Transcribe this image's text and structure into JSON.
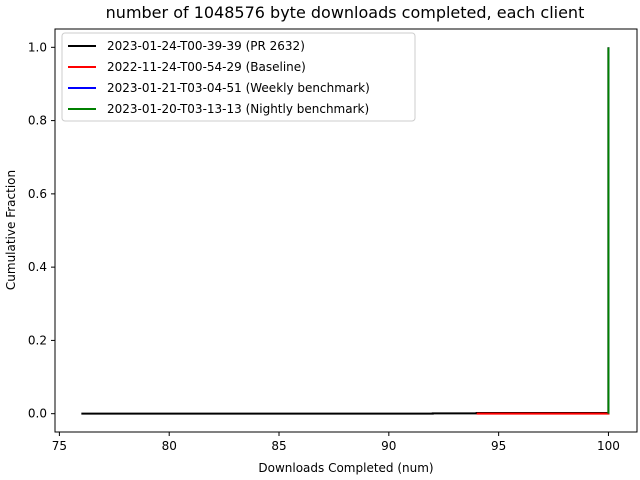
{
  "chart_data": {
    "type": "line",
    "title": "number of 1048576 byte downloads completed, each client",
    "xlabel": "Downloads Completed (num)",
    "ylabel": "Cumulative Fraction",
    "xlim": [
      74.8,
      101.3
    ],
    "ylim": [
      -0.05,
      1.05
    ],
    "xticks": [
      75,
      80,
      85,
      90,
      95,
      100
    ],
    "yticks": [
      0.0,
      0.2,
      0.4,
      0.6,
      0.8,
      1.0
    ],
    "xtick_labels": [
      "75",
      "80",
      "85",
      "90",
      "95",
      "100"
    ],
    "ytick_labels": [
      "0.0",
      "0.2",
      "0.4",
      "0.6",
      "0.8",
      "1.0"
    ],
    "legend_position": "top-left",
    "grid": false,
    "series": [
      {
        "name": "2023-01-24-T00-39-39 (PR 2632)",
        "color": "#000000",
        "x": [
          76,
          92,
          92,
          94,
          94,
          100,
          100
        ],
        "y": [
          0.0,
          0.0,
          0.001,
          0.001,
          0.002,
          0.002,
          1.0
        ]
      },
      {
        "name": "2022-11-24-T00-54-29 (Baseline)",
        "color": "#ff0000",
        "x": [
          94,
          100,
          100
        ],
        "y": [
          0.0,
          0.0,
          1.0
        ]
      },
      {
        "name": "2023-01-21-T03-04-51 (Weekly benchmark)",
        "color": "#0000ff",
        "x": [
          100,
          100
        ],
        "y": [
          0.0,
          1.0
        ]
      },
      {
        "name": "2023-01-20-T03-13-13 (Nightly benchmark)",
        "color": "#008000",
        "x": [
          100,
          100
        ],
        "y": [
          0.0,
          1.0
        ]
      }
    ]
  }
}
